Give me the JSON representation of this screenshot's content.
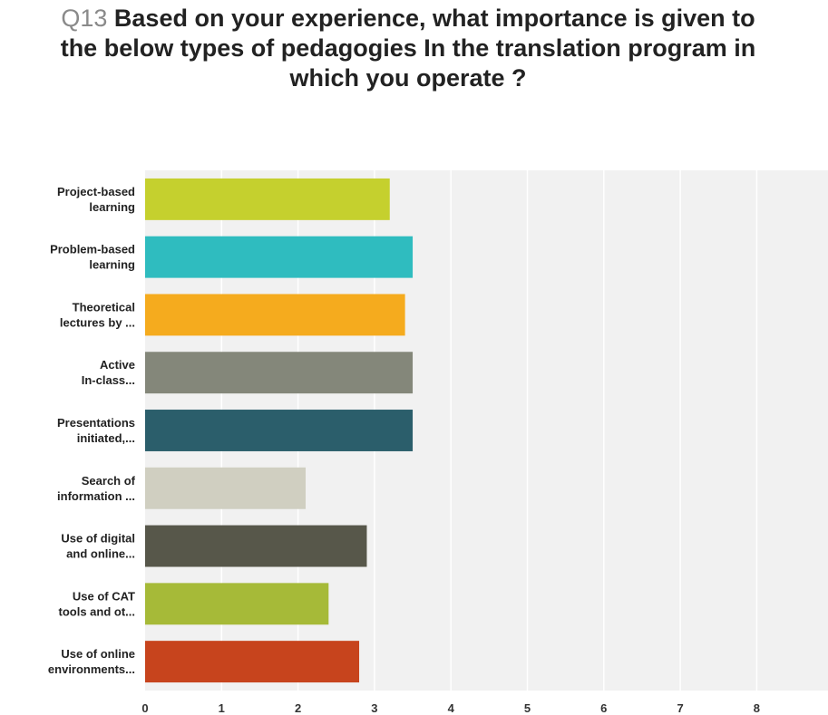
{
  "chart_data": {
    "type": "bar",
    "orientation": "horizontal",
    "title_prefix": "Q13",
    "title": "Based on your experience, what importance is given to the below types of pedagogies In the translation program in which you operate ?",
    "categories": [
      [
        "Project-based",
        "learning"
      ],
      [
        "Problem-based",
        "learning"
      ],
      [
        "Theoretical",
        "lectures by ..."
      ],
      [
        "Active",
        "In-class..."
      ],
      [
        "Presentations",
        "initiated,..."
      ],
      [
        "Search of",
        "information ..."
      ],
      [
        "Use of digital",
        "and online..."
      ],
      [
        "Use of CAT",
        "tools and ot..."
      ],
      [
        "Use of online",
        "environments..."
      ]
    ],
    "values": [
      3.2,
      3.5,
      3.4,
      3.5,
      3.5,
      2.1,
      2.9,
      2.4,
      2.8
    ],
    "colors": [
      "#c5d02e",
      "#2fbcbf",
      "#f5ab1e",
      "#84877a",
      "#2b5e6b",
      "#d0cfc1",
      "#57574a",
      "#a6ba38",
      "#c7441d"
    ],
    "xlim": [
      0,
      9
    ],
    "x_ticks": [
      "0",
      "1",
      "2",
      "3",
      "4",
      "5",
      "6",
      "7",
      "8",
      "9"
    ],
    "grid": true,
    "legend": "none",
    "background": "#f1f1f1",
    "gridline_color": "#ffffff"
  }
}
